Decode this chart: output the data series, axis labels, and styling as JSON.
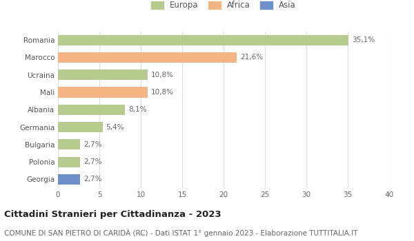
{
  "categories": [
    "Romania",
    "Marocco",
    "Ucraina",
    "Mali",
    "Albania",
    "Germania",
    "Bulgaria",
    "Polonia",
    "Georgia"
  ],
  "values": [
    35.1,
    21.6,
    10.8,
    10.8,
    8.1,
    5.4,
    2.7,
    2.7,
    2.7
  ],
  "labels": [
    "35,1%",
    "21,6%",
    "10,8%",
    "10,8%",
    "8,1%",
    "5,4%",
    "2,7%",
    "2,7%",
    "2,7%"
  ],
  "continents": [
    "Europa",
    "Africa",
    "Europa",
    "Africa",
    "Europa",
    "Europa",
    "Europa",
    "Europa",
    "Asia"
  ],
  "colors": {
    "Europa": "#b5cc8e",
    "Africa": "#f4b483",
    "Asia": "#6e8fc9"
  },
  "legend_order": [
    "Europa",
    "Africa",
    "Asia"
  ],
  "title": "Cittadini Stranieri per Cittadinanza - 2023",
  "subtitle": "COMUNE DI SAN PIETRO DI CARIDÀ (RC) - Dati ISTAT 1° gennaio 2023 - Elaborazione TUTTITALIA.IT",
  "xlim": [
    0,
    40
  ],
  "xticks": [
    0,
    5,
    10,
    15,
    20,
    25,
    30,
    35,
    40
  ],
  "background_color": "#ffffff",
  "grid_color": "#dddddd",
  "bar_height": 0.6,
  "label_fontsize": 7.5,
  "title_fontsize": 9.5,
  "subtitle_fontsize": 7.5,
  "ytick_fontsize": 7.5,
  "xtick_fontsize": 7.5,
  "legend_fontsize": 8.5
}
